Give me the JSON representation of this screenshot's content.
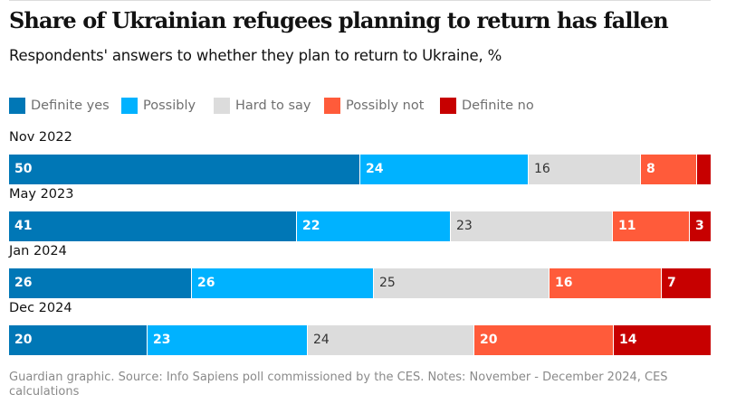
{
  "title": "Share of Ukrainian refugees planning to return has fallen",
  "subtitle": "Respondents' answers to whether they plan to return to Ukraine, %",
  "footer": "Guardian graphic. Source: Info Sapiens poll commissioned by the CES. Notes: November - December 2024, CES calculations",
  "chart_data": {
    "type": "bar",
    "orientation": "horizontal",
    "stacked": true,
    "title": "Share of Ukrainian refugees planning to return has fallen",
    "subtitle": "Respondents' answers to whether they plan to return to Ukraine, %",
    "categories": [
      "Nov 2022",
      "May 2023",
      "Jan 2024",
      "Dec 2024"
    ],
    "legend_position": "top-left",
    "grid": false,
    "series": [
      {
        "name": "Definite yes",
        "color": "#0077b6",
        "label_color": "#ffffff",
        "values": [
          50,
          41,
          26,
          20
        ]
      },
      {
        "name": "Possibly",
        "color": "#00b2ff",
        "label_color": "#ffffff",
        "values": [
          24,
          22,
          26,
          23
        ]
      },
      {
        "name": "Hard to say",
        "color": "#dcdcdc",
        "label_color": "#333333",
        "values": [
          16,
          23,
          25,
          24
        ]
      },
      {
        "name": "Possibly not",
        "color": "#ff5b3a",
        "label_color": "#ffffff",
        "values": [
          8,
          11,
          16,
          20
        ]
      },
      {
        "name": "Definite no",
        "color": "#c70000",
        "label_color": "#ffffff",
        "values": [
          2,
          3,
          7,
          14
        ]
      }
    ],
    "visible_labels": [
      [
        "50",
        "24",
        "16",
        "8",
        ""
      ],
      [
        "41",
        "22",
        "23",
        "11",
        "3"
      ],
      [
        "26",
        "26",
        "25",
        "16",
        "7"
      ],
      [
        "20",
        "23",
        "24",
        "20",
        "14"
      ]
    ],
    "source": "Guardian graphic. Source: Info Sapiens poll commissioned by the CES. Notes: November - December 2024, CES calculations"
  }
}
